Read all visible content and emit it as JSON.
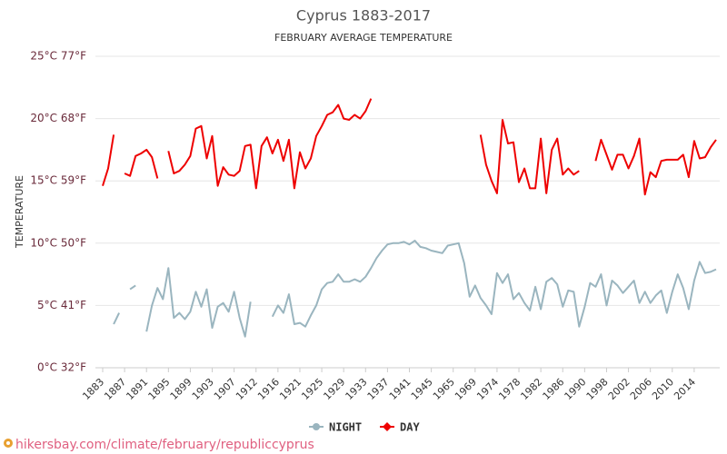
{
  "chart_data": {
    "type": "line",
    "title": "Cyprus 1883-2017",
    "subtitle": "FEBRUARY AVERAGE TEMPERATURE",
    "y_label": "TEMPERATURE",
    "source": "hikersbay.com/climate/february/republiccyprus",
    "legend": "bottom",
    "grid": true,
    "ylim": [
      0,
      25
    ],
    "yticks": [
      {
        "value": 0,
        "label": "0°C 32°F"
      },
      {
        "value": 5,
        "label": "5°C 41°F"
      },
      {
        "value": 10,
        "label": "10°C 50°F"
      },
      {
        "value": 15,
        "label": "15°C 59°F"
      },
      {
        "value": 20,
        "label": "20°C 68°F"
      },
      {
        "value": 25,
        "label": "25°C 77°F"
      }
    ],
    "categories": [
      "1883",
      null,
      null,
      null,
      "1887",
      null,
      null,
      null,
      "1891",
      null,
      null,
      null,
      "1895",
      null,
      null,
      null,
      "1899",
      null,
      null,
      null,
      "1903",
      null,
      null,
      null,
      "1907",
      null,
      null,
      null,
      "1912",
      null,
      null,
      null,
      "1916",
      null,
      null,
      null,
      "1921",
      null,
      null,
      null,
      "1925",
      null,
      null,
      null,
      "1929",
      null,
      null,
      null,
      "1933",
      null,
      null,
      null,
      "1937",
      null,
      null,
      null,
      "1941",
      null,
      null,
      null,
      "1945",
      null,
      null,
      null,
      "1965",
      null,
      null,
      null,
      "1969",
      null,
      null,
      null,
      "1974",
      null,
      null,
      null,
      "1978",
      null,
      null,
      null,
      "1982",
      null,
      null,
      null,
      "1986",
      null,
      null,
      null,
      "1990",
      null,
      null,
      null,
      "1998",
      null,
      null,
      null,
      "2002",
      null,
      null,
      null,
      "2006",
      null,
      null,
      null,
      "2010",
      null,
      null,
      null,
      "2014",
      null,
      null,
      null,
      null
    ],
    "series": [
      {
        "name": "NIGHT",
        "color": "#9ab5bf",
        "marker": "circle",
        "values": [
          null,
          null,
          3.5,
          4.4,
          null,
          6.3,
          6.6,
          null,
          2.9,
          5,
          6.4,
          5.5,
          8.0,
          4,
          4.4,
          3.9,
          4.5,
          6.1,
          4.9,
          6.3,
          3.2,
          4.9,
          5.2,
          4.5,
          6.1,
          4,
          2.5,
          5.3,
          null,
          null,
          null,
          4.1,
          5,
          4.4,
          5.9,
          3.5,
          3.6,
          3.3,
          4.2,
          5,
          6.3,
          6.8,
          6.9,
          7.5,
          6.9,
          6.9,
          7.1,
          6.9,
          7.3,
          8,
          8.8,
          9.4,
          9.9,
          10,
          10,
          10.1,
          9.9,
          10.2,
          9.7,
          9.6,
          9.4,
          9.3,
          9.2,
          9.8,
          9.9,
          10,
          8.4,
          5.7,
          6.6,
          5.6,
          5,
          4.3,
          7.6,
          6.8,
          7.5,
          5.5,
          6,
          5.2,
          4.6,
          6.5,
          4.7,
          6.9,
          7.2,
          6.7,
          4.9,
          6.2,
          6.1,
          3.3,
          4.9,
          6.8,
          6.5,
          7.5,
          5,
          7,
          6.6,
          6,
          6.5,
          7,
          5.2,
          6.1,
          5.2,
          5.8,
          6.2,
          4.4,
          6.1,
          7.5,
          6.4,
          4.7,
          7,
          8.5,
          7.6,
          7.7,
          7.9
        ]
      },
      {
        "name": "DAY",
        "color": "#ee0000",
        "marker": "diamond",
        "values": [
          14.6,
          16,
          18.7,
          null,
          15.6,
          15.4,
          17.0,
          17.2,
          17.5,
          16.9,
          15.2,
          null,
          17.4,
          15.6,
          15.8,
          16.3,
          17,
          19.2,
          19.4,
          16.8,
          18.6,
          14.6,
          16.1,
          15.5,
          15.4,
          15.8,
          17.8,
          17.9,
          14.4,
          17.8,
          18.5,
          17.2,
          18.3,
          16.6,
          18.3,
          14.4,
          17.3,
          16,
          16.8,
          18.6,
          19.4,
          20.3,
          20.5,
          21.1,
          20,
          19.9,
          20.3,
          20,
          20.6,
          21.6,
          null,
          null,
          null,
          null,
          null,
          null,
          null,
          null,
          null,
          null,
          null,
          null,
          null,
          null,
          null,
          null,
          null,
          null,
          null,
          18.7,
          16.3,
          15,
          14,
          19.9,
          18,
          18.1,
          14.9,
          16,
          14.4,
          14.4,
          18.4,
          14,
          17.5,
          18.4,
          15.5,
          16,
          15.5,
          15.8,
          null,
          null,
          16.6,
          18.3,
          17.1,
          15.9,
          17.1,
          17.1,
          16,
          17,
          18.4,
          13.9,
          15.7,
          15.3,
          16.6,
          16.7,
          16.7,
          16.7,
          17.1,
          15.3,
          18.2,
          16.8,
          16.9,
          17.7,
          18.3
        ]
      }
    ]
  }
}
